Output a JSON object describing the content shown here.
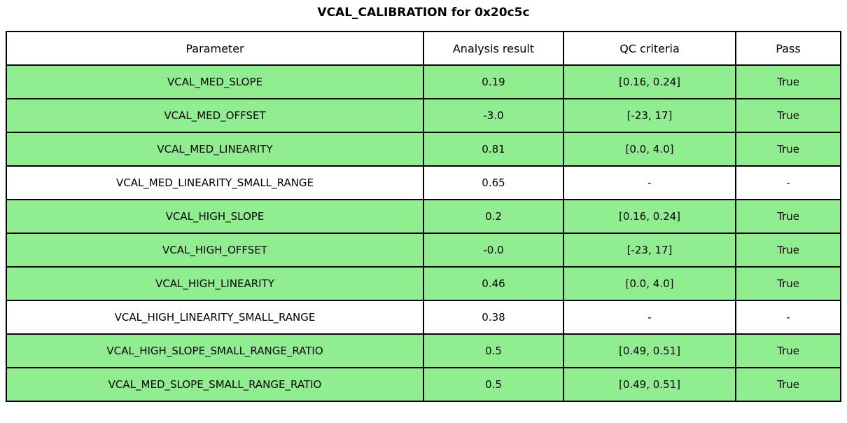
{
  "title": "VCAL_CALIBRATION for 0x20c5c",
  "colors": {
    "pass_row": "#90EE90",
    "neutral_row": "#FFFFFF",
    "border": "#000000",
    "text": "#000000",
    "background": "#FFFFFF"
  },
  "chart_data": {
    "type": "table",
    "title": "VCAL_CALIBRATION for 0x20c5c",
    "columns": [
      "Parameter",
      "Analysis result",
      "QC criteria",
      "Pass"
    ],
    "rows": [
      {
        "parameter": "VCAL_MED_SLOPE",
        "analysis_result": "0.19",
        "qc_criteria": "[0.16, 0.24]",
        "pass": "True",
        "highlighted": true
      },
      {
        "parameter": "VCAL_MED_OFFSET",
        "analysis_result": "-3.0",
        "qc_criteria": "[-23, 17]",
        "pass": "True",
        "highlighted": true
      },
      {
        "parameter": "VCAL_MED_LINEARITY",
        "analysis_result": "0.81",
        "qc_criteria": "[0.0, 4.0]",
        "pass": "True",
        "highlighted": true
      },
      {
        "parameter": "VCAL_MED_LINEARITY_SMALL_RANGE",
        "analysis_result": "0.65",
        "qc_criteria": "-",
        "pass": "-",
        "highlighted": false
      },
      {
        "parameter": "VCAL_HIGH_SLOPE",
        "analysis_result": "0.2",
        "qc_criteria": "[0.16, 0.24]",
        "pass": "True",
        "highlighted": true
      },
      {
        "parameter": "VCAL_HIGH_OFFSET",
        "analysis_result": "-0.0",
        "qc_criteria": "[-23, 17]",
        "pass": "True",
        "highlighted": true
      },
      {
        "parameter": "VCAL_HIGH_LINEARITY",
        "analysis_result": "0.46",
        "qc_criteria": "[0.0, 4.0]",
        "pass": "True",
        "highlighted": true
      },
      {
        "parameter": "VCAL_HIGH_LINEARITY_SMALL_RANGE",
        "analysis_result": "0.38",
        "qc_criteria": "-",
        "pass": "-",
        "highlighted": false
      },
      {
        "parameter": "VCAL_HIGH_SLOPE_SMALL_RANGE_RATIO",
        "analysis_result": "0.5",
        "qc_criteria": "[0.49, 0.51]",
        "pass": "True",
        "highlighted": true
      },
      {
        "parameter": "VCAL_MED_SLOPE_SMALL_RANGE_RATIO",
        "analysis_result": "0.5",
        "qc_criteria": "[0.49, 0.51]",
        "pass": "True",
        "highlighted": true
      }
    ]
  }
}
